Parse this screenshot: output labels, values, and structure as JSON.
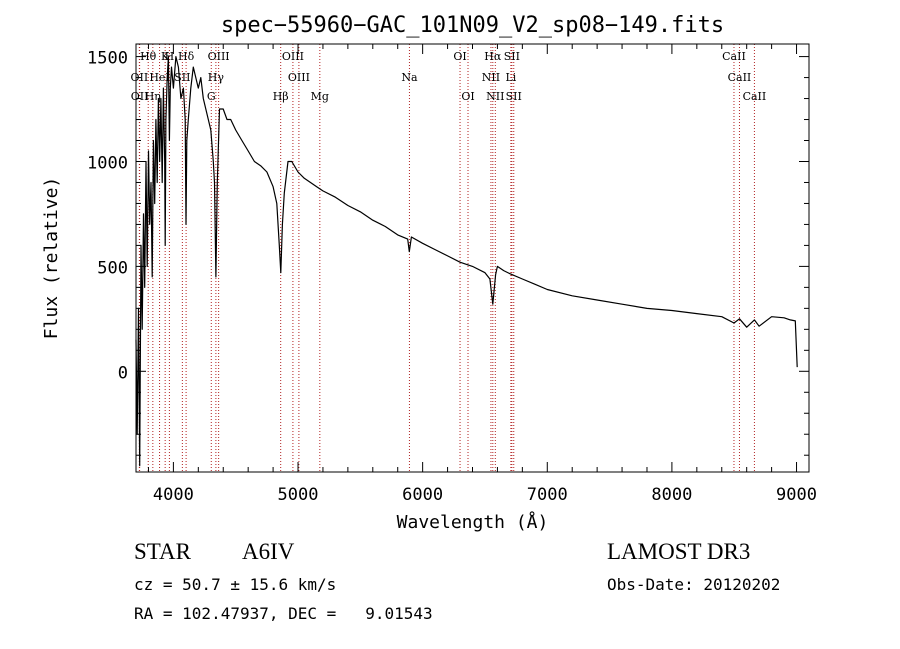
{
  "chart_data": {
    "type": "line",
    "title": "spec−55960−GAC_101N09_V2_sp08−149.fits",
    "xlabel": "Wavelength (Å)",
    "ylabel": "Flux (relative)",
    "xlim": [
      3700,
      9100
    ],
    "ylim": [
      -480,
      1560
    ],
    "xticks": [
      {
        "value": 4000,
        "label": "4000"
      },
      {
        "value": 5000,
        "label": "5000"
      },
      {
        "value": 6000,
        "label": "6000"
      },
      {
        "value": 7000,
        "label": "7000"
      },
      {
        "value": 8000,
        "label": "8000"
      },
      {
        "value": 9000,
        "label": "9000"
      }
    ],
    "yticks": [
      {
        "value": 0,
        "label": "0"
      },
      {
        "value": 500,
        "label": "500"
      },
      {
        "value": 1000,
        "label": "1000"
      },
      {
        "value": 1500,
        "label": "1500"
      }
    ],
    "series": [
      {
        "name": "flux",
        "color": "#000000",
        "x": [
          3700,
          3710,
          3720,
          3730,
          3740,
          3750,
          3760,
          3770,
          3780,
          3790,
          3800,
          3810,
          3820,
          3830,
          3840,
          3850,
          3860,
          3870,
          3880,
          3890,
          3900,
          3910,
          3920,
          3930,
          3934,
          3940,
          3950,
          3960,
          3968,
          3975,
          3985,
          4000,
          4020,
          4040,
          4060,
          4080,
          4095,
          4101,
          4108,
          4120,
          4140,
          4160,
          4180,
          4200,
          4220,
          4240,
          4260,
          4280,
          4300,
          4320,
          4330,
          4341,
          4352,
          4370,
          4400,
          4430,
          4460,
          4500,
          4550,
          4600,
          4650,
          4700,
          4750,
          4800,
          4830,
          4850,
          4862,
          4875,
          4890,
          4920,
          4950,
          5000,
          5050,
          5100,
          5150,
          5200,
          5300,
          5400,
          5500,
          5600,
          5700,
          5800,
          5880,
          5893,
          5910,
          6000,
          6100,
          6200,
          6300,
          6400,
          6500,
          6540,
          6563,
          6585,
          6600,
          6650,
          6700,
          6800,
          6900,
          7000,
          7200,
          7400,
          7600,
          7800,
          8000,
          8200,
          8400,
          8498,
          8542,
          8600,
          8662,
          8700,
          8800,
          8900,
          8950,
          8990,
          9005
        ],
        "y": [
          150,
          -300,
          300,
          -450,
          600,
          200,
          750,
          400,
          1000,
          500,
          1050,
          700,
          900,
          450,
          1100,
          800,
          1200,
          900,
          1300,
          1000,
          1300,
          900,
          1350,
          1000,
          600,
          1200,
          1400,
          1500,
          1100,
          1350,
          1450,
          1350,
          1500,
          1450,
          1300,
          1350,
          1200,
          700,
          1100,
          1200,
          1350,
          1450,
          1400,
          1350,
          1400,
          1300,
          1250,
          1200,
          1150,
          1000,
          900,
          450,
          900,
          1250,
          1250,
          1200,
          1200,
          1150,
          1100,
          1050,
          1000,
          980,
          950,
          880,
          800,
          600,
          470,
          700,
          850,
          1000,
          1000,
          950,
          920,
          900,
          880,
          860,
          830,
          790,
          760,
          720,
          690,
          650,
          630,
          570,
          640,
          610,
          580,
          550,
          520,
          500,
          470,
          440,
          320,
          460,
          500,
          480,
          465,
          440,
          415,
          390,
          360,
          340,
          320,
          300,
          290,
          275,
          260,
          230,
          250,
          210,
          245,
          215,
          260,
          255,
          245,
          240,
          20
        ]
      }
    ],
    "lines": [
      {
        "label": "Hθ",
        "wavelength": 3798
      },
      {
        "label": "OII",
        "wavelength": 3727
      },
      {
        "label": "OII",
        "wavelength": 3729
      },
      {
        "label": "Hη",
        "wavelength": 3835
      },
      {
        "label": "HeI",
        "wavelength": 3889
      },
      {
        "label": "K",
        "wavelength": 3934
      },
      {
        "label": "H",
        "wavelength": 3968
      },
      {
        "label": "SII",
        "wavelength": 4072
      },
      {
        "label": "Hδ",
        "wavelength": 4102
      },
      {
        "label": "G",
        "wavelength": 4304
      },
      {
        "label": "Hγ",
        "wavelength": 4341
      },
      {
        "label": "OIII",
        "wavelength": 4363
      },
      {
        "label": "Hβ",
        "wavelength": 4861
      },
      {
        "label": "OIII",
        "wavelength": 4959
      },
      {
        "label": "OIII",
        "wavelength": 5007
      },
      {
        "label": "Mg",
        "wavelength": 5175
      },
      {
        "label": "Na",
        "wavelength": 5894
      },
      {
        "label": "OI",
        "wavelength": 6300
      },
      {
        "label": "OI",
        "wavelength": 6364
      },
      {
        "label": "NII",
        "wavelength": 6548
      },
      {
        "label": "Hα",
        "wavelength": 6563
      },
      {
        "label": "NII",
        "wavelength": 6583
      },
      {
        "label": "Li",
        "wavelength": 6708
      },
      {
        "label": "SII",
        "wavelength": 6716
      },
      {
        "label": "SII",
        "wavelength": 6731
      },
      {
        "label": "CaII",
        "wavelength": 8498
      },
      {
        "label": "CaII",
        "wavelength": 8542
      },
      {
        "label": "CaII",
        "wavelength": 8662
      }
    ]
  },
  "info": {
    "class": "STAR",
    "subclass": "A6IV",
    "survey": "LAMOST DR3",
    "cz": "cz = 50.7 ± 15.6 km/s",
    "obs_date": "Obs-Date: 20120202",
    "radec": "RA = 102.47937, DEC =   9.01543"
  },
  "colors": {
    "line_marker": "#b22222",
    "spectrum": "#000000"
  }
}
